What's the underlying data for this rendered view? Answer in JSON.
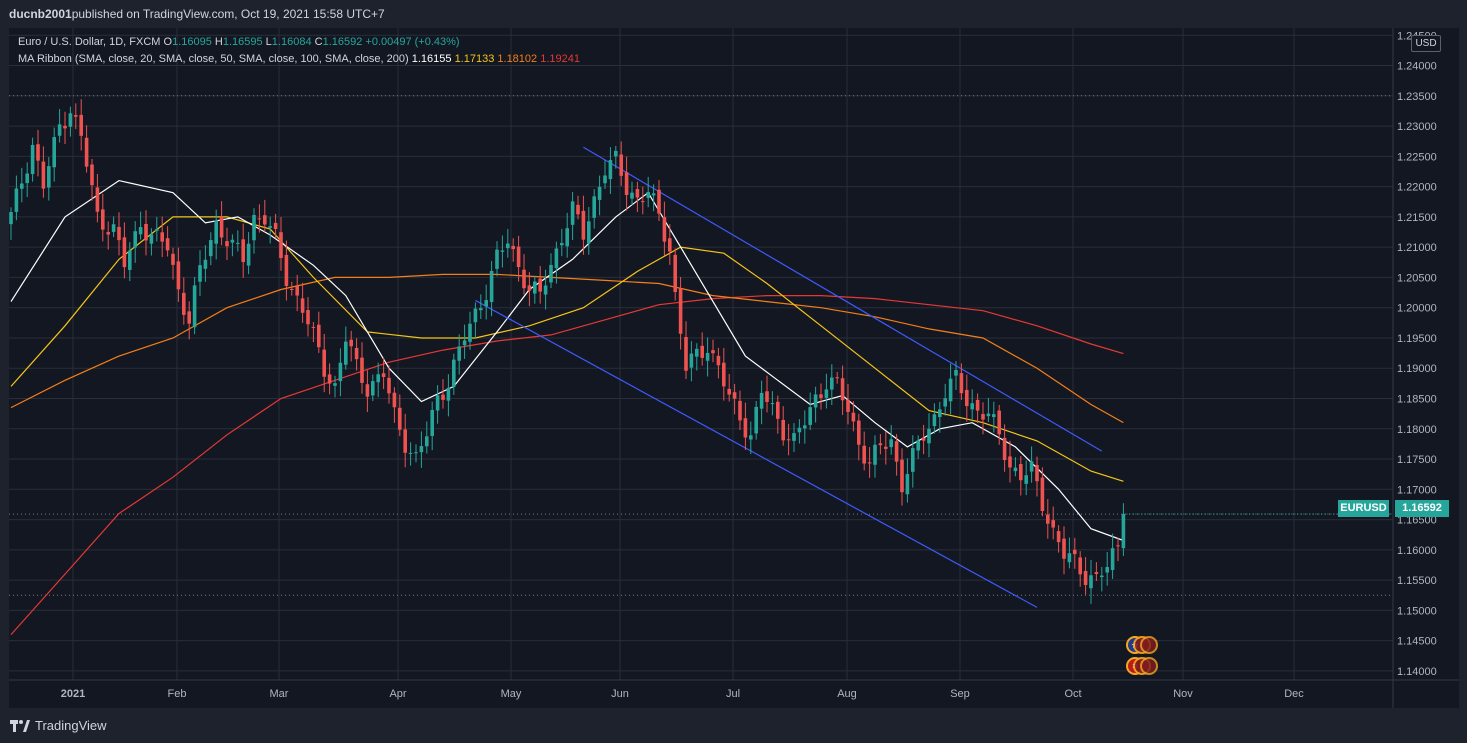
{
  "header": {
    "author": "ducnb2001",
    "published_text": " published on TradingView.com, Oct 19, 2021 15:58 UTC+7"
  },
  "legend": {
    "symbol": "Euro / U.S. Dollar, 1D, FXCM",
    "o_label": "O",
    "o": "1.16095",
    "h_label": "H",
    "h": "1.16595",
    "l_label": "L",
    "l": "1.16084",
    "c_label": "C",
    "c": "1.16592",
    "change": "+0.00497 (+0.43%)",
    "ma_label": "MA Ribbon (SMA, close, 20, SMA, close, 50, SMA, close, 100, SMA, close, 200)",
    "ma20": "1.16155",
    "ma50": "1.17133",
    "ma100": "1.18102",
    "ma200": "1.19241"
  },
  "currency": "USD",
  "price_tag": {
    "symbol": "EURUSD",
    "price": "1.16592"
  },
  "footer": {
    "brand": "TradingView"
  },
  "colors": {
    "up": "#26a69a",
    "down": "#ef5350",
    "ma20": "#ffffff",
    "ma50": "#f5c518",
    "ma100": "#f57f17",
    "ma200": "#e53935",
    "channel": "#3d5afe"
  },
  "chart_data": {
    "type": "candlestick",
    "symbol": "EURUSD",
    "timeframe": "1D",
    "y_ticks": [
      "1.24500",
      "1.24000",
      "1.23500",
      "1.23000",
      "1.22500",
      "1.22000",
      "1.21500",
      "1.21000",
      "1.20500",
      "1.20000",
      "1.19500",
      "1.19000",
      "1.18500",
      "1.18000",
      "1.17500",
      "1.17000",
      "1.16500",
      "1.16000",
      "1.15500",
      "1.15000",
      "1.14500",
      "1.14000"
    ],
    "ylim": [
      1.1385,
      1.2462
    ],
    "x_ticks": [
      "2021",
      "Feb",
      "Mar",
      "Apr",
      "May",
      "Jun",
      "Jul",
      "Aug",
      "Sep",
      "Oct",
      "Nov",
      "Dec"
    ],
    "dotted_levels": [
      1.235,
      1.1659,
      1.1525
    ],
    "close_path": [
      [
        0,
        1.215
      ],
      [
        4,
        1.227
      ],
      [
        6,
        1.22
      ],
      [
        9,
        1.23
      ],
      [
        11,
        1.233
      ],
      [
        13,
        1.228
      ],
      [
        16,
        1.215
      ],
      [
        19,
        1.213
      ],
      [
        21,
        1.207
      ],
      [
        24,
        1.214
      ],
      [
        26,
        1.212
      ],
      [
        29,
        1.21
      ],
      [
        31,
        1.203
      ],
      [
        33,
        1.198
      ],
      [
        35,
        1.206
      ],
      [
        38,
        1.214
      ],
      [
        41,
        1.21
      ],
      [
        43,
        1.208
      ],
      [
        45,
        1.215
      ],
      [
        47,
        1.215
      ],
      [
        49,
        1.211
      ],
      [
        51,
        1.205
      ],
      [
        54,
        1.2
      ],
      [
        56,
        1.195
      ],
      [
        58,
        1.19
      ],
      [
        60,
        1.187
      ],
      [
        62,
        1.195
      ],
      [
        64,
        1.19
      ],
      [
        66,
        1.187
      ],
      [
        69,
        1.189
      ],
      [
        71,
        1.182
      ],
      [
        73,
        1.178
      ],
      [
        75,
        1.175
      ],
      [
        77,
        1.179
      ],
      [
        79,
        1.185
      ],
      [
        81,
        1.188
      ],
      [
        84,
        1.195
      ],
      [
        86,
        1.199
      ],
      [
        88,
        1.203
      ],
      [
        90,
        1.208
      ],
      [
        92,
        1.211
      ],
      [
        94,
        1.207
      ],
      [
        96,
        1.203
      ],
      [
        98,
        1.202
      ],
      [
        100,
        1.207
      ],
      [
        102,
        1.212
      ],
      [
        104,
        1.216
      ],
      [
        106,
        1.212
      ],
      [
        108,
        1.218
      ],
      [
        110,
        1.223
      ],
      [
        112,
        1.224
      ],
      [
        114,
        1.22
      ],
      [
        116,
        1.218
      ],
      [
        118,
        1.219
      ],
      [
        120,
        1.215
      ],
      [
        122,
        1.21
      ],
      [
        123,
        1.202
      ],
      [
        125,
        1.19
      ],
      [
        127,
        1.192
      ],
      [
        129,
        1.194
      ],
      [
        131,
        1.19
      ],
      [
        133,
        1.185
      ],
      [
        135,
        1.182
      ],
      [
        137,
        1.179
      ],
      [
        139,
        1.186
      ],
      [
        141,
        1.183
      ],
      [
        143,
        1.18
      ],
      [
        145,
        1.178
      ],
      [
        147,
        1.181
      ],
      [
        149,
        1.185
      ],
      [
        151,
        1.188
      ],
      [
        153,
        1.187
      ],
      [
        155,
        1.183
      ],
      [
        157,
        1.178
      ],
      [
        159,
        1.174
      ],
      [
        161,
        1.177
      ],
      [
        163,
        1.178
      ],
      [
        165,
        1.171
      ],
      [
        167,
        1.175
      ],
      [
        169,
        1.179
      ],
      [
        171,
        1.182
      ],
      [
        173,
        1.186
      ],
      [
        175,
        1.188
      ],
      [
        177,
        1.185
      ],
      [
        179,
        1.183
      ],
      [
        181,
        1.182
      ],
      [
        183,
        1.179
      ],
      [
        185,
        1.174
      ],
      [
        187,
        1.172
      ],
      [
        189,
        1.173
      ],
      [
        191,
        1.168
      ],
      [
        193,
        1.163
      ],
      [
        195,
        1.159
      ],
      [
        197,
        1.158
      ],
      [
        199,
        1.156
      ],
      [
        201,
        1.155
      ],
      [
        203,
        1.157
      ],
      [
        205,
        1.161
      ],
      [
        206,
        1.16592
      ]
    ],
    "ma_series": [
      {
        "name": "20",
        "points": [
          [
            0,
            1.201
          ],
          [
            10,
            1.215
          ],
          [
            20,
            1.221
          ],
          [
            30,
            1.219
          ],
          [
            36,
            1.214
          ],
          [
            42,
            1.215
          ],
          [
            48,
            1.212
          ],
          [
            56,
            1.207
          ],
          [
            62,
            1.202
          ],
          [
            70,
            1.19
          ],
          [
            76,
            1.1845
          ],
          [
            82,
            1.187
          ],
          [
            90,
            1.196
          ],
          [
            96,
            1.203
          ],
          [
            104,
            1.208
          ],
          [
            112,
            1.215
          ],
          [
            118,
            1.219
          ],
          [
            124,
            1.21
          ],
          [
            130,
            1.201
          ],
          [
            136,
            1.192
          ],
          [
            142,
            1.188
          ],
          [
            148,
            1.184
          ],
          [
            154,
            1.1855
          ],
          [
            160,
            1.181
          ],
          [
            166,
            1.177
          ],
          [
            172,
            1.18
          ],
          [
            178,
            1.181
          ],
          [
            186,
            1.177
          ],
          [
            194,
            1.17
          ],
          [
            200,
            1.1635
          ],
          [
            206,
            1.16155
          ]
        ]
      },
      {
        "name": "50",
        "points": [
          [
            0,
            1.187
          ],
          [
            10,
            1.197
          ],
          [
            20,
            1.208
          ],
          [
            30,
            1.215
          ],
          [
            40,
            1.215
          ],
          [
            48,
            1.213
          ],
          [
            56,
            1.205
          ],
          [
            66,
            1.196
          ],
          [
            76,
            1.195
          ],
          [
            86,
            1.195
          ],
          [
            96,
            1.197
          ],
          [
            106,
            1.2
          ],
          [
            116,
            1.206
          ],
          [
            124,
            1.21
          ],
          [
            132,
            1.209
          ],
          [
            140,
            1.204
          ],
          [
            150,
            1.197
          ],
          [
            160,
            1.19
          ],
          [
            170,
            1.183
          ],
          [
            180,
            1.181
          ],
          [
            190,
            1.178
          ],
          [
            200,
            1.173
          ],
          [
            206,
            1.17133
          ]
        ]
      },
      {
        "name": "100",
        "points": [
          [
            0,
            1.1835
          ],
          [
            10,
            1.188
          ],
          [
            20,
            1.192
          ],
          [
            30,
            1.195
          ],
          [
            40,
            1.2
          ],
          [
            50,
            1.203
          ],
          [
            60,
            1.205
          ],
          [
            70,
            1.205
          ],
          [
            80,
            1.2055
          ],
          [
            90,
            1.2055
          ],
          [
            100,
            1.205
          ],
          [
            110,
            1.2045
          ],
          [
            120,
            1.204
          ],
          [
            130,
            1.202
          ],
          [
            140,
            1.201
          ],
          [
            150,
            1.2
          ],
          [
            160,
            1.1985
          ],
          [
            170,
            1.1965
          ],
          [
            180,
            1.195
          ],
          [
            190,
            1.19
          ],
          [
            200,
            1.184
          ],
          [
            206,
            1.18102
          ]
        ]
      },
      {
        "name": "200",
        "points": [
          [
            0,
            1.146
          ],
          [
            10,
            1.156
          ],
          [
            20,
            1.166
          ],
          [
            30,
            1.172
          ],
          [
            40,
            1.179
          ],
          [
            50,
            1.185
          ],
          [
            60,
            1.188
          ],
          [
            70,
            1.191
          ],
          [
            80,
            1.193
          ],
          [
            90,
            1.1945
          ],
          [
            100,
            1.1955
          ],
          [
            110,
            1.198
          ],
          [
            120,
            1.2005
          ],
          [
            130,
            1.2015
          ],
          [
            140,
            1.202
          ],
          [
            150,
            1.202
          ],
          [
            160,
            1.2015
          ],
          [
            170,
            1.2005
          ],
          [
            180,
            1.1995
          ],
          [
            190,
            1.197
          ],
          [
            200,
            1.194
          ],
          [
            206,
            1.19241
          ]
        ]
      }
    ],
    "channel": [
      {
        "from": [
          86,
          1.2012
        ],
        "to": [
          190,
          1.1505
        ]
      },
      {
        "from": [
          106,
          1.2265
        ],
        "to": [
          202,
          1.1763
        ]
      }
    ]
  }
}
